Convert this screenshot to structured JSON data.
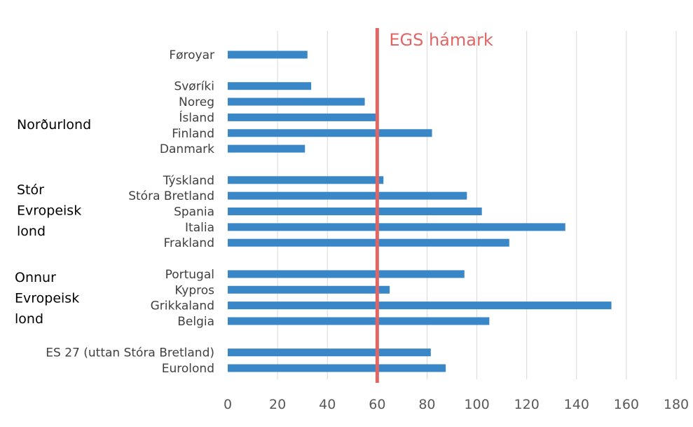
{
  "chart_data": {
    "type": "bar",
    "orientation": "horizontal",
    "categories": [
      "Føroyar",
      "Svøríki",
      "Noreg",
      "Ísland",
      "Finland",
      "Danmark",
      "Týskland",
      "Stóra Bretland",
      "Spania",
      "Italia",
      "Frakland",
      "Portugal",
      "Kypros",
      "Grikkaland",
      "Belgia",
      "ES 27 (uttan Stóra Bretland)",
      "Eurolond"
    ],
    "values": [
      32,
      33.5,
      55,
      60,
      82,
      31,
      62.5,
      96,
      102,
      135.5,
      113,
      95,
      65,
      154,
      105,
      81.5,
      87.5
    ],
    "groups": [
      {
        "label_lines": [
          "Norðurlond"
        ],
        "members": [
          "Svøríki",
          "Noreg",
          "Ísland",
          "Finland",
          "Danmark"
        ]
      },
      {
        "label_lines": [
          "Stór",
          "Evropeisk",
          "lond"
        ],
        "members": [
          "Týskland",
          "Stóra Bretland",
          "Spania",
          "Italia",
          "Frakland"
        ]
      },
      {
        "label_lines": [
          "Onnur",
          "Evropeisk",
          "lond"
        ],
        "members": [
          "Portugal",
          "Kypros",
          "Grikkaland",
          "Belgia"
        ]
      }
    ],
    "reference_line": {
      "value": 60,
      "label": "EGS hámark",
      "color": "#e06666"
    },
    "xlim": [
      0,
      180
    ],
    "xticks": [
      0,
      20,
      40,
      60,
      80,
      100,
      120,
      140,
      160,
      180
    ],
    "grid": true,
    "bar_color": "#3a87c8",
    "title": "",
    "xlabel": "",
    "ylabel": ""
  }
}
